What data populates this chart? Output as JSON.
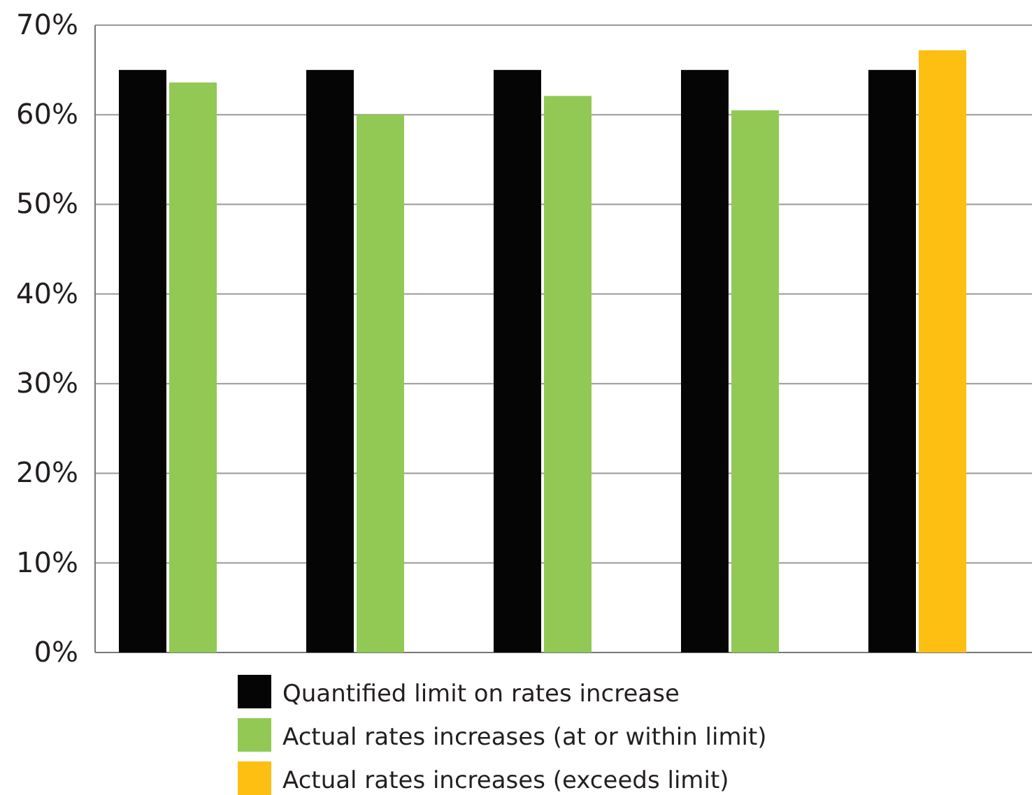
{
  "chart_data": {
    "type": "bar",
    "categories": [
      null,
      null,
      null,
      null,
      null
    ],
    "series": [
      {
        "name": "Quantified limit on rates increase",
        "color": "#050505",
        "values": [
          65,
          65,
          65,
          65,
          65
        ]
      },
      {
        "name": "Actual rates increases (at or within limit)",
        "color": "#92c955",
        "values": [
          63.6,
          60,
          62.1,
          60.5,
          null
        ]
      },
      {
        "name": "Actual rates increases (exceeds limit)",
        "color": "#fcbf12",
        "values": [
          null,
          null,
          null,
          null,
          67.2
        ]
      }
    ],
    "ylim": [
      0,
      70
    ],
    "yticks": [
      {
        "value": 0,
        "label": "0%"
      },
      {
        "value": 10,
        "label": "10%"
      },
      {
        "value": 20,
        "label": "20%"
      },
      {
        "value": 30,
        "label": "30%"
      },
      {
        "value": 40,
        "label": "40%"
      },
      {
        "value": 50,
        "label": "50%"
      },
      {
        "value": 60,
        "label": "60%"
      },
      {
        "value": 70,
        "label": "70%"
      }
    ],
    "grid": "y",
    "legend": "bottom"
  }
}
